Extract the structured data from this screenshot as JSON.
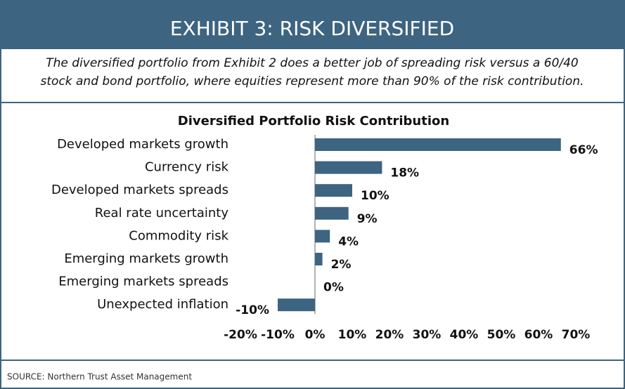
{
  "header": {
    "title": "EXHIBIT 3: RISK DIVERSIFIED",
    "subtitle": [
      "The diversified portfolio from Exhibit 2 does a better job of spreading risk versus a 60/40",
      "stock and bond portfolio, where equities represent more than 90% of the risk contribution."
    ]
  },
  "chart_data": {
    "type": "hbar",
    "title": "Diversified Portfolio Risk Contribution",
    "categories": [
      "Developed markets growth",
      "Currency risk",
      "Developed markets spreads",
      "Real rate  uncertainty",
      "Commodity risk",
      "Emerging markets growth",
      "Emerging markets spreads",
      "Unexpected inflation"
    ],
    "values": [
      66,
      18,
      10,
      9,
      4,
      2,
      0,
      -10
    ],
    "value_labels": [
      "66%",
      "18%",
      "10%",
      "9%",
      "4%",
      "2%",
      "0%",
      "-10%"
    ],
    "color": "#3d6480",
    "xlim": [
      -20,
      70
    ],
    "xticks": [
      {
        "value": -20,
        "label": "-20%"
      },
      {
        "value": -10,
        "label": "-10%"
      },
      {
        "value": 0,
        "label": "0%"
      },
      {
        "value": 10,
        "label": "10%"
      },
      {
        "value": 20,
        "label": "20%"
      },
      {
        "value": 30,
        "label": "30%"
      },
      {
        "value": 40,
        "label": "40%"
      },
      {
        "value": 50,
        "label": "50%"
      },
      {
        "value": 60,
        "label": "60%"
      },
      {
        "value": 70,
        "label": "70%"
      }
    ],
    "grid": false
  },
  "footer": {
    "source": "SOURCE: Northern Trust Asset Management"
  }
}
